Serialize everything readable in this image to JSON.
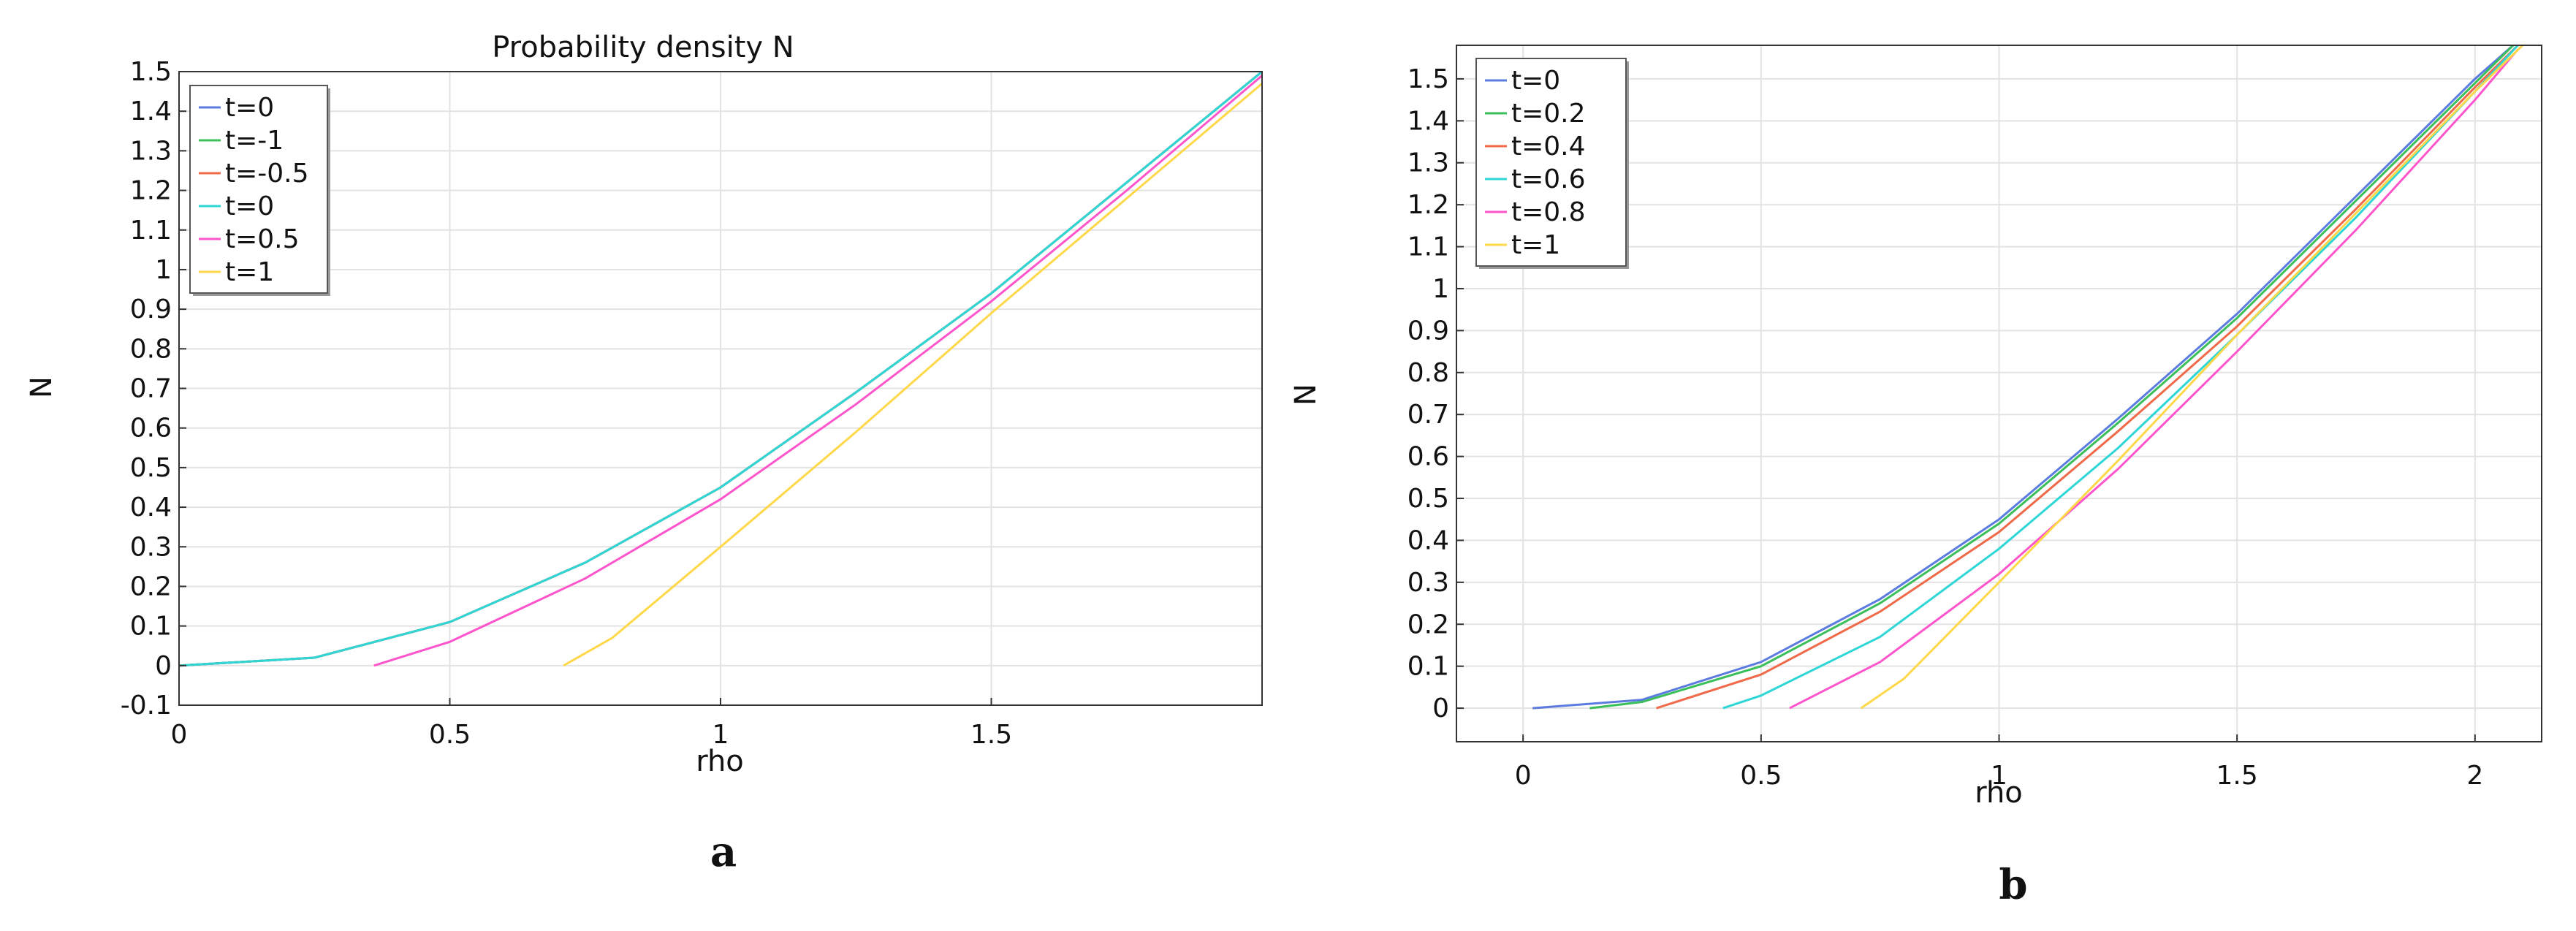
{
  "chart_data": [
    {
      "type": "line",
      "panel_label": "a",
      "title": "Probability density N",
      "xlabel": "rho",
      "ylabel": "N",
      "xlim": [
        0,
        2.0
      ],
      "ylim": [
        -0.1,
        1.5
      ],
      "xticks": [
        0,
        0.5,
        1,
        1.5
      ],
      "xtick_labels": [
        "0",
        "0.5",
        "1",
        "1.5"
      ],
      "yticks": [
        -0.1,
        0,
        0.1,
        0.2,
        0.3,
        0.4,
        0.5,
        0.6,
        0.7,
        0.8,
        0.9,
        1,
        1.1,
        1.2,
        1.3,
        1.4,
        1.5
      ],
      "ytick_labels": [
        "-0.1",
        "0",
        "0.1",
        "0.2",
        "0.3",
        "0.4",
        "0.5",
        "0.6",
        "0.7",
        "0.8",
        "0.9",
        "1",
        "1.1",
        "1.2",
        "1.3",
        "1.4",
        "1.5"
      ],
      "grid": true,
      "legend_position": "top-left",
      "series": [
        {
          "name": "t=0",
          "color": "#5b7be0",
          "x": [
            0,
            0.25,
            0.5,
            0.75,
            1.0,
            1.25,
            1.5,
            1.75,
            2.0
          ],
          "y": [
            0,
            0.02,
            0.11,
            0.26,
            0.45,
            0.69,
            0.94,
            1.22,
            1.5
          ]
        },
        {
          "name": "t=-1",
          "color": "#3bbf5a",
          "x": [
            0,
            0.25,
            0.5,
            0.75,
            1.0,
            1.25,
            1.5,
            1.75,
            2.0
          ],
          "y": [
            0,
            0.02,
            0.11,
            0.26,
            0.45,
            0.69,
            0.94,
            1.22,
            1.5
          ]
        },
        {
          "name": "t=-0.5",
          "color": "#f06a4a",
          "x": [
            0,
            0.25,
            0.5,
            0.75,
            1.0,
            1.25,
            1.5,
            1.75,
            2.0
          ],
          "y": [
            0,
            0.02,
            0.11,
            0.26,
            0.45,
            0.69,
            0.94,
            1.22,
            1.5
          ]
        },
        {
          "name": "t=0",
          "color": "#2fd6d6",
          "x": [
            0,
            0.25,
            0.5,
            0.75,
            1.0,
            1.25,
            1.5,
            1.75,
            2.0
          ],
          "y": [
            0,
            0.02,
            0.11,
            0.26,
            0.45,
            0.69,
            0.94,
            1.22,
            1.5
          ]
        },
        {
          "name": "t=0.5",
          "color": "#ff55cc",
          "x": [
            0.36,
            0.5,
            0.75,
            1.0,
            1.25,
            1.5,
            1.75,
            2.0
          ],
          "y": [
            0,
            0.06,
            0.22,
            0.42,
            0.66,
            0.92,
            1.2,
            1.49
          ]
        },
        {
          "name": "t=1",
          "color": "#ffd84a",
          "x": [
            0.71,
            0.8,
            1.0,
            1.25,
            1.5,
            1.75,
            2.0
          ],
          "y": [
            0,
            0.07,
            0.3,
            0.59,
            0.89,
            1.18,
            1.47
          ]
        }
      ]
    },
    {
      "type": "line",
      "panel_label": "b",
      "title": "",
      "xlabel": "rho",
      "ylabel": "N",
      "xlim": [
        -0.14,
        2.14
      ],
      "ylim": [
        -0.08,
        1.58
      ],
      "xticks": [
        0,
        0.5,
        1,
        1.5,
        2
      ],
      "xtick_labels": [
        "0",
        "0.5",
        "1",
        "1.5",
        "2"
      ],
      "yticks": [
        0,
        0.1,
        0.2,
        0.3,
        0.4,
        0.5,
        0.6,
        0.7,
        0.8,
        0.9,
        1,
        1.1,
        1.2,
        1.3,
        1.4,
        1.5
      ],
      "ytick_labels": [
        "0",
        "0.1",
        "0.2",
        "0.3",
        "0.4",
        "0.5",
        "0.6",
        "0.7",
        "0.8",
        "0.9",
        "1",
        "1.1",
        "1.2",
        "1.3",
        "1.4",
        "1.5"
      ],
      "grid": true,
      "legend_position": "top-left",
      "series": [
        {
          "name": "t=0",
          "color": "#5b7be0",
          "x": [
            0.02,
            0.25,
            0.5,
            0.75,
            1.0,
            1.25,
            1.5,
            1.75,
            2.0,
            2.08
          ],
          "y": [
            0,
            0.02,
            0.11,
            0.26,
            0.45,
            0.69,
            0.94,
            1.22,
            1.5,
            1.58
          ]
        },
        {
          "name": "t=0.2",
          "color": "#3bbf5a",
          "x": [
            0.14,
            0.25,
            0.5,
            0.75,
            1.0,
            1.25,
            1.5,
            1.75,
            2.0,
            2.08
          ],
          "y": [
            0,
            0.015,
            0.1,
            0.25,
            0.44,
            0.68,
            0.93,
            1.21,
            1.49,
            1.58
          ]
        },
        {
          "name": "t=0.4",
          "color": "#f06a4a",
          "x": [
            0.28,
            0.5,
            0.75,
            1.0,
            1.25,
            1.5,
            1.75,
            2.0,
            2.09
          ],
          "y": [
            0,
            0.08,
            0.23,
            0.42,
            0.66,
            0.91,
            1.19,
            1.48,
            1.58
          ]
        },
        {
          "name": "t=0.6",
          "color": "#2fd6d6",
          "x": [
            0.42,
            0.5,
            0.75,
            1.0,
            1.25,
            1.5,
            1.75,
            2.0,
            2.09
          ],
          "y": [
            0,
            0.03,
            0.17,
            0.38,
            0.62,
            0.89,
            1.17,
            1.47,
            1.58
          ]
        },
        {
          "name": "t=0.8",
          "color": "#ff55cc",
          "x": [
            0.56,
            0.75,
            1.0,
            1.25,
            1.5,
            1.75,
            2.0,
            2.09
          ],
          "y": [
            0,
            0.11,
            0.32,
            0.57,
            0.85,
            1.14,
            1.45,
            1.57
          ]
        },
        {
          "name": "t=1",
          "color": "#ffd84a",
          "x": [
            0.71,
            0.8,
            1.0,
            1.25,
            1.5,
            1.75,
            2.0,
            2.1
          ],
          "y": [
            0,
            0.07,
            0.3,
            0.59,
            0.89,
            1.18,
            1.47,
            1.58
          ]
        }
      ]
    }
  ]
}
